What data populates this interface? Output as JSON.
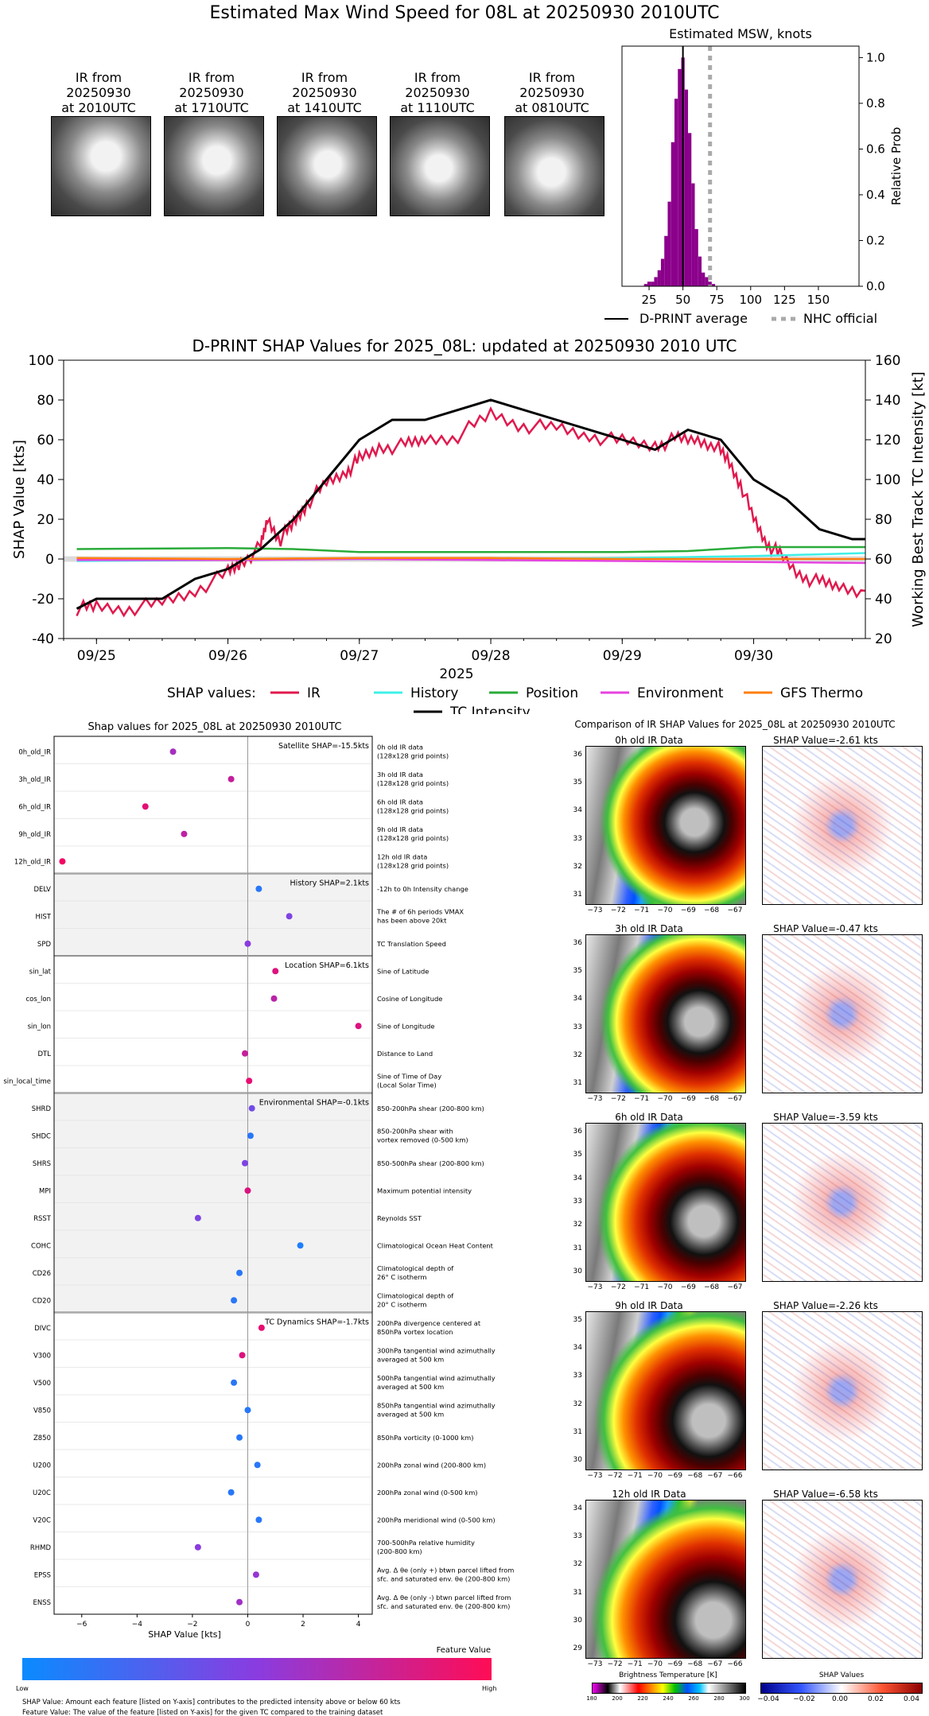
{
  "page_title": "Estimated Max Wind Speed for 08L at 20250930 2010UTC",
  "thumbnails": [
    {
      "caption": [
        "IR from",
        "20250930",
        "at 2010UTC"
      ]
    },
    {
      "caption": [
        "IR from",
        "20250930",
        "at 1710UTC"
      ]
    },
    {
      "caption": [
        "IR from",
        "20250930",
        "at 1410UTC"
      ]
    },
    {
      "caption": [
        "IR from",
        "20250930",
        "at 1110UTC"
      ]
    },
    {
      "caption": [
        "IR from",
        "20250930",
        "at 0810UTC"
      ]
    }
  ],
  "colors": {
    "ir": "#e0194d",
    "history": "#3ff0e8",
    "position": "#2aab3a",
    "environment": "#e642e0",
    "gfs": "#ff7f0e",
    "tc": "#000000",
    "hist_bar": "#8b008b",
    "nhc": "#aaaaaa"
  },
  "chart_data": [
    {
      "type": "bar",
      "title": "Estimated MSW, knots",
      "ylabel": "Relative Prob",
      "xlim": [
        5,
        180
      ],
      "ylim": [
        0,
        1.05
      ],
      "x_ticks": [
        25,
        50,
        75,
        100,
        125,
        150
      ],
      "y_ticks": [
        0.0,
        0.2,
        0.4,
        0.6,
        0.8,
        1.0
      ],
      "bin_width": 2.5,
      "bins": [
        {
          "x": 22.5,
          "value": 0.01
        },
        {
          "x": 25,
          "value": 0.02
        },
        {
          "x": 27.5,
          "value": 0.02
        },
        {
          "x": 30,
          "value": 0.04
        },
        {
          "x": 32.5,
          "value": 0.07
        },
        {
          "x": 35,
          "value": 0.12
        },
        {
          "x": 37.5,
          "value": 0.22
        },
        {
          "x": 40,
          "value": 0.37
        },
        {
          "x": 42.5,
          "value": 0.63
        },
        {
          "x": 45,
          "value": 0.82
        },
        {
          "x": 47.5,
          "value": 0.95
        },
        {
          "x": 50,
          "value": 1.0
        },
        {
          "x": 52.5,
          "value": 0.86
        },
        {
          "x": 55,
          "value": 0.67
        },
        {
          "x": 57.5,
          "value": 0.45
        },
        {
          "x": 60,
          "value": 0.25
        },
        {
          "x": 62.5,
          "value": 0.13
        },
        {
          "x": 65,
          "value": 0.06
        },
        {
          "x": 67.5,
          "value": 0.04
        },
        {
          "x": 70,
          "value": 0.02
        },
        {
          "x": 72.5,
          "value": 0.01
        }
      ],
      "dprint_average": 50,
      "nhc_official": 70,
      "legend": [
        "D-PRINT average",
        "NHC official"
      ]
    },
    {
      "type": "line",
      "title": "D-PRINT SHAP Values for 2025_08L: updated at 20250930 2010 UTC",
      "xlabel": "2025",
      "ylabel": "SHAP Value [kts]",
      "y2label": "Working Best Track TC Intensity [kt]",
      "x_ticks": [
        "09/25",
        "09/26",
        "09/27",
        "09/28",
        "09/29",
        "09/30"
      ],
      "ylim": [
        -40,
        100
      ],
      "y_ticks": [
        -40,
        -20,
        0,
        20,
        40,
        60,
        80,
        100
      ],
      "y2lim": [
        20,
        160
      ],
      "y2_ticks": [
        20,
        40,
        60,
        80,
        100,
        120,
        140,
        160
      ],
      "x_unit": "days after 09/25 00 UTC",
      "xlim": [
        -0.25,
        5.85
      ],
      "legend_prefix": "SHAP values:",
      "series": [
        {
          "name": "IR",
          "key": "ir",
          "points": [
            [
              -0.15,
              -25
            ],
            [
              0,
              -24
            ],
            [
              0.25,
              -25
            ],
            [
              0.5,
              -22
            ],
            [
              0.75,
              -16
            ],
            [
              1,
              -7
            ],
            [
              1.1,
              -2
            ],
            [
              1.25,
              6
            ],
            [
              1.3,
              20
            ],
            [
              1.4,
              10
            ],
            [
              1.5,
              18
            ],
            [
              1.6,
              28
            ],
            [
              1.75,
              38
            ],
            [
              1.9,
              44
            ],
            [
              2,
              50
            ],
            [
              2.15,
              56
            ],
            [
              2.35,
              57
            ],
            [
              2.5,
              60
            ],
            [
              2.75,
              62
            ],
            [
              3,
              73
            ],
            [
              3.25,
              67
            ],
            [
              3.5,
              66
            ],
            [
              3.75,
              62
            ],
            [
              4,
              59
            ],
            [
              4.25,
              57
            ],
            [
              4.4,
              60
            ],
            [
              4.55,
              60
            ],
            [
              4.7,
              58
            ],
            [
              4.8,
              50
            ],
            [
              4.9,
              38
            ],
            [
              5,
              20
            ],
            [
              5.1,
              8
            ],
            [
              5.2,
              2
            ],
            [
              5.35,
              -8
            ],
            [
              5.5,
              -12
            ],
            [
              5.65,
              -14
            ],
            [
              5.85,
              -16
            ]
          ]
        },
        {
          "name": "History",
          "key": "history",
          "points": [
            [
              -0.15,
              -1
            ],
            [
              1,
              -0.5
            ],
            [
              2,
              0
            ],
            [
              3,
              0
            ],
            [
              4,
              0.5
            ],
            [
              5,
              1.5
            ],
            [
              5.85,
              3
            ]
          ]
        },
        {
          "name": "Position",
          "key": "position",
          "points": [
            [
              -0.15,
              5
            ],
            [
              1,
              5.5
            ],
            [
              1.5,
              5
            ],
            [
              2,
              3.5
            ],
            [
              3,
              3.5
            ],
            [
              4,
              3.5
            ],
            [
              4.5,
              4
            ],
            [
              5,
              6
            ],
            [
              5.85,
              6
            ]
          ]
        },
        {
          "name": "Environment",
          "key": "environment",
          "points": [
            [
              -0.15,
              -0.5
            ],
            [
              1,
              -0.5
            ],
            [
              2,
              0
            ],
            [
              3,
              -0.5
            ],
            [
              4,
              -1
            ],
            [
              5,
              -1.5
            ],
            [
              5.85,
              -2
            ]
          ]
        },
        {
          "name": "GFS Thermo",
          "key": "gfs",
          "points": [
            [
              -0.15,
              0.5
            ],
            [
              1,
              0
            ],
            [
              2,
              0.5
            ],
            [
              3,
              0.5
            ],
            [
              4,
              0
            ],
            [
              5,
              0
            ],
            [
              5.85,
              0
            ]
          ]
        },
        {
          "name": "TC Intensity",
          "key": "tc",
          "axis": "right",
          "points": [
            [
              -0.15,
              35
            ],
            [
              0,
              40
            ],
            [
              0.5,
              40
            ],
            [
              0.75,
              50
            ],
            [
              1,
              55
            ],
            [
              1.25,
              65
            ],
            [
              1.5,
              80
            ],
            [
              1.75,
              100
            ],
            [
              2,
              120
            ],
            [
              2.25,
              130
            ],
            [
              2.5,
              130
            ],
            [
              3,
              140
            ],
            [
              3.5,
              130
            ],
            [
              4,
              120
            ],
            [
              4.25,
              115
            ],
            [
              4.5,
              125
            ],
            [
              4.75,
              120
            ],
            [
              5,
              100
            ],
            [
              5.25,
              90
            ],
            [
              5.5,
              75
            ],
            [
              5.75,
              70
            ],
            [
              5.85,
              70
            ]
          ]
        }
      ]
    },
    {
      "type": "scatter",
      "title": "Shap values for 2025_08L at 20250930 2010UTC",
      "xlabel": "SHAP Value [kts]",
      "xlim": [
        -7,
        4.5
      ],
      "x_ticks": [
        -6,
        -4,
        -2,
        0,
        2,
        4
      ],
      "groups": [
        {
          "label": "Satellite SHAP=-15.5kts",
          "shaded": false,
          "rows": 5
        },
        {
          "label": "History SHAP=2.1kts",
          "shaded": true,
          "rows": 3
        },
        {
          "label": "Location SHAP=6.1kts",
          "shaded": false,
          "rows": 5
        },
        {
          "label": "Environmental SHAP=-0.1kts",
          "shaded": true,
          "rows": 8
        },
        {
          "label": "TC Dynamics SHAP=-1.7kts",
          "shaded": false,
          "rows": 11
        }
      ],
      "features": [
        {
          "name": "0h_old_IR",
          "shap": -2.7,
          "value": 0.62,
          "desc": [
            "0h old IR data",
            "(128x128 grid points)"
          ]
        },
        {
          "name": "3h_old_IR",
          "shap": -0.6,
          "value": 0.75,
          "desc": [
            "3h old IR data",
            "(128x128 grid points)"
          ]
        },
        {
          "name": "6h_old_IR",
          "shap": -3.7,
          "value": 0.88,
          "desc": [
            "6h old IR data",
            "(128x128 grid points)"
          ]
        },
        {
          "name": "9h_old_IR",
          "shap": -2.3,
          "value": 0.72,
          "desc": [
            "9h old IR data",
            "(128x128 grid points)"
          ]
        },
        {
          "name": "12h_old_IR",
          "shap": -6.7,
          "value": 0.95,
          "desc": [
            "12h old IR data",
            "(128x128 grid points)"
          ]
        },
        {
          "name": "DELV",
          "shap": 0.4,
          "value": 0.1,
          "desc": [
            "-12h to 0h Intensity change"
          ]
        },
        {
          "name": "HIST",
          "shap": 1.5,
          "value": 0.45,
          "desc": [
            "The # of 6h periods VMAX",
            "has been above 20kt"
          ]
        },
        {
          "name": "SPD",
          "shap": 0.0,
          "value": 0.5,
          "desc": [
            "TC Translation Speed"
          ]
        },
        {
          "name": "sin_lat",
          "shap": 1.0,
          "value": 0.85,
          "desc": [
            "Sine of Latitude"
          ]
        },
        {
          "name": "cos_lon",
          "shap": 0.95,
          "value": 0.7,
          "desc": [
            "Cosine of Longitude"
          ]
        },
        {
          "name": "sin_lon",
          "shap": 4.0,
          "value": 0.85,
          "desc": [
            "Sine of Longitude"
          ]
        },
        {
          "name": "DTL",
          "shap": -0.1,
          "value": 0.75,
          "desc": [
            "Distance to Land"
          ]
        },
        {
          "name": "sin_local_time",
          "shap": 0.05,
          "value": 0.9,
          "desc": [
            "Sine of Time of Day",
            "(Local Solar Time)"
          ]
        },
        {
          "name": "SHRD",
          "shap": 0.15,
          "value": 0.4,
          "desc": [
            "850-200hPa shear (200-800 km)"
          ]
        },
        {
          "name": "SHDC",
          "shap": 0.1,
          "value": 0.1,
          "desc": [
            "850-200hPa shear with",
            "vortex removed (0-500 km)"
          ]
        },
        {
          "name": "SHRS",
          "shap": -0.1,
          "value": 0.45,
          "desc": [
            "850-500hPa shear (200-800 km)"
          ]
        },
        {
          "name": "MPI",
          "shap": 0.0,
          "value": 0.85,
          "desc": [
            "Maximum potential intensity"
          ]
        },
        {
          "name": "RSST",
          "shap": -1.8,
          "value": 0.45,
          "desc": [
            "Reynolds SST"
          ]
        },
        {
          "name": "COHC",
          "shap": 1.9,
          "value": 0.05,
          "desc": [
            "Climatological Ocean Heat Content"
          ]
        },
        {
          "name": "CD26",
          "shap": -0.3,
          "value": 0.1,
          "desc": [
            "Climatological depth of",
            "26° C isotherm"
          ]
        },
        {
          "name": "CD20",
          "shap": -0.5,
          "value": 0.1,
          "desc": [
            "Climatological depth of",
            "20° C isotherm"
          ]
        },
        {
          "name": "DIVC",
          "shap": 0.5,
          "value": 0.9,
          "desc": [
            "200hPa divergence centered at",
            "850hPa vortex location"
          ]
        },
        {
          "name": "V300",
          "shap": -0.2,
          "value": 0.85,
          "desc": [
            "300hPa tangential wind azimuthally",
            "averaged at 500 km"
          ]
        },
        {
          "name": "V500",
          "shap": -0.5,
          "value": 0.1,
          "desc": [
            "500hPa tangential wind azimuthally",
            "averaged at 500 km"
          ]
        },
        {
          "name": "V850",
          "shap": 0.0,
          "value": 0.1,
          "desc": [
            "850hPa tangential wind azimuthally",
            "averaged at 500 km"
          ]
        },
        {
          "name": "Z850",
          "shap": -0.3,
          "value": 0.1,
          "desc": [
            "850hPa vorticity (0-1000 km)"
          ]
        },
        {
          "name": "U200",
          "shap": 0.35,
          "value": 0.1,
          "desc": [
            "200hPa zonal wind (200-800 km)"
          ]
        },
        {
          "name": "U20C",
          "shap": -0.6,
          "value": 0.1,
          "desc": [
            "200hPa zonal wind (0-500 km)"
          ]
        },
        {
          "name": "V20C",
          "shap": 0.4,
          "value": 0.1,
          "desc": [
            "200hPa meridional wind (0-500 km)"
          ]
        },
        {
          "name": "RHMD",
          "shap": -1.8,
          "value": 0.5,
          "desc": [
            "700-500hPa relative humidity",
            "(200-800 km)"
          ]
        },
        {
          "name": "EPSS",
          "shap": 0.3,
          "value": 0.55,
          "desc": [
            "Avg. Δ θe (only +) btwn parcel lifted from",
            "sfc. and saturated env. θe (200-800 km)"
          ]
        },
        {
          "name": "ENSS",
          "shap": -0.3,
          "value": 0.6,
          "desc": [
            "Avg. Δ θe (only -) btwn parcel lifted from",
            "sfc. and saturated env. θe (200-800 km)"
          ]
        }
      ]
    }
  ],
  "colorbar": {
    "title": "Feature Value",
    "low": "Low",
    "high": "High"
  },
  "footnotes": [
    "SHAP Value: Amount each feature [listed on Y-axis] contributes to the predicted intensity above or below 60 kts",
    "Feature Value: The value of the feature [listed on Y-axis] for the given TC compared to the training dataset"
  ],
  "ir_comparison": {
    "title": "Comparison of IR SHAP Values for 2025_08L at 20250930 2010UTC",
    "rows": [
      {
        "ir_title": "0h old IR Data",
        "shap_title": "SHAP Value=-2.61 kts",
        "lon_ticks": [
          "−73",
          "−72",
          "−71",
          "−70",
          "−69",
          "−68",
          "−67"
        ],
        "lat_ticks": [
          "36",
          "35",
          "34",
          "33",
          "32",
          "31"
        ]
      },
      {
        "ir_title": "3h old IR Data",
        "shap_title": "SHAP Value=-0.47 kts",
        "lon_ticks": [
          "−73",
          "−72",
          "−71",
          "−70",
          "−69",
          "−68",
          "−67"
        ],
        "lat_ticks": [
          "36",
          "35",
          "34",
          "33",
          "32",
          "31"
        ]
      },
      {
        "ir_title": "6h old IR Data",
        "shap_title": "SHAP Value=-3.59 kts",
        "lon_ticks": [
          "−73",
          "−72",
          "−71",
          "−70",
          "−69",
          "−68",
          "−67"
        ],
        "lat_ticks": [
          "36",
          "35",
          "34",
          "33",
          "32",
          "31",
          "30"
        ]
      },
      {
        "ir_title": "9h old IR Data",
        "shap_title": "SHAP Value=-2.26 kts",
        "lon_ticks": [
          "−73",
          "−72",
          "−71",
          "−70",
          "−69",
          "−68",
          "−67",
          "−66"
        ],
        "lat_ticks": [
          "35",
          "34",
          "33",
          "32",
          "31",
          "30"
        ]
      },
      {
        "ir_title": "12h old IR Data",
        "shap_title": "SHAP Value=-6.58 kts",
        "lon_ticks": [
          "−73",
          "−72",
          "−71",
          "−70",
          "−69",
          "−68",
          "−67",
          "−66"
        ],
        "lat_ticks": [
          "34",
          "33",
          "32",
          "31",
          "30",
          "29"
        ]
      }
    ],
    "bt_colorbar": {
      "title": "Brightness Temperature [K]",
      "ticks": [
        "180",
        "200",
        "220",
        "240",
        "260",
        "280",
        "300"
      ]
    },
    "shap_colorbar": {
      "title": "SHAP Values",
      "ticks": [
        "−0.04",
        "−0.02",
        "0.00",
        "0.02",
        "0.04"
      ]
    }
  }
}
